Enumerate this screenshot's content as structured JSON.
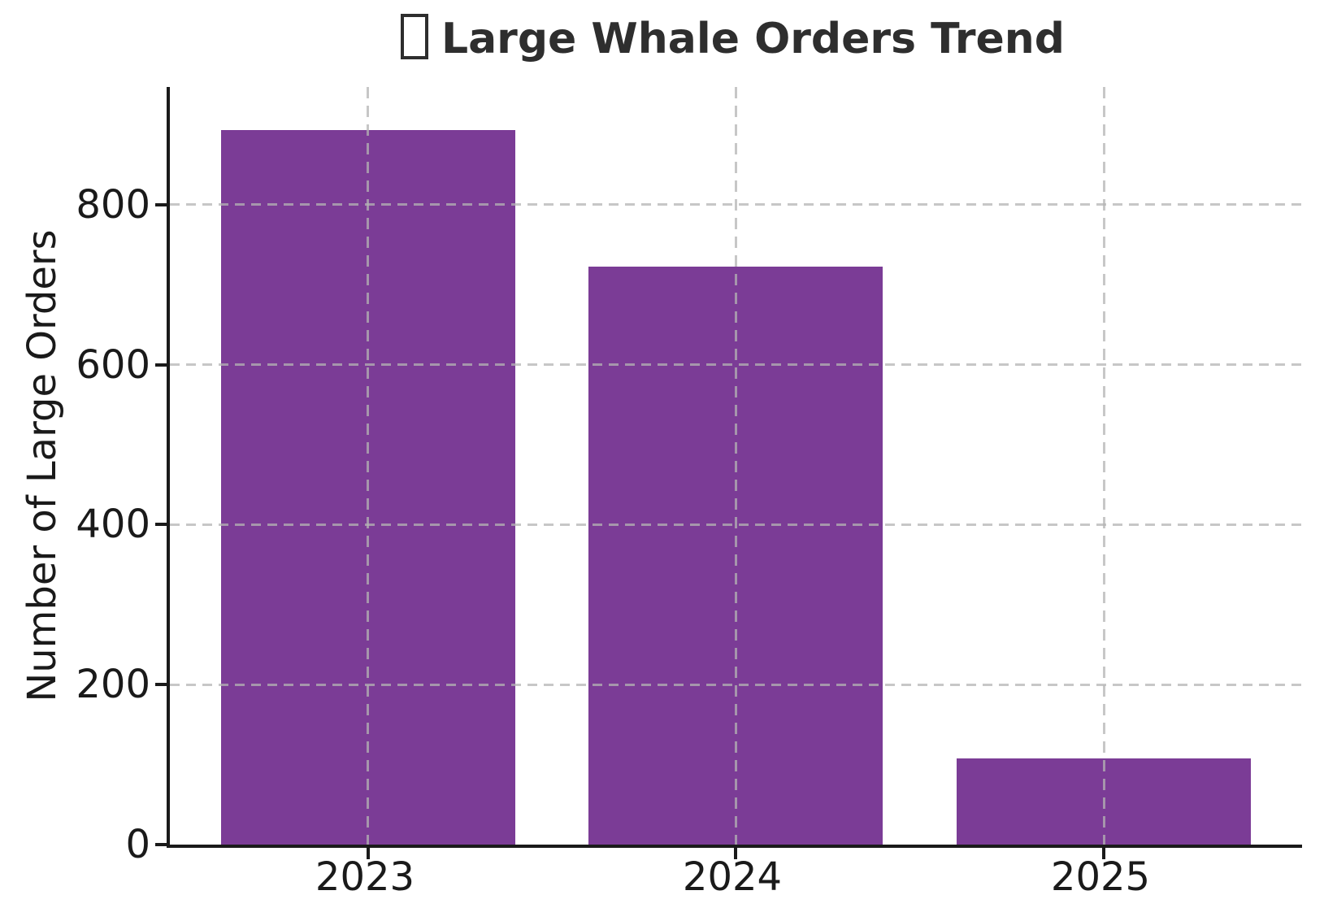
{
  "chart_data": {
    "type": "bar",
    "title": "Large Whale Orders Trend",
    "title_icon": "missing-emoji-glyph-box",
    "ylabel": "Number of Large Orders",
    "xlabel": "",
    "categories": [
      "2023",
      "2024",
      "2025"
    ],
    "values": [
      893,
      722,
      108
    ],
    "yticks": [
      0,
      200,
      400,
      600,
      800
    ],
    "ylim": [
      0,
      947
    ],
    "grid": "dashed, drawn above bars, x and y",
    "legend": "none",
    "colors": {
      "bar": "#7b3c96",
      "grid": "#c9c9c9",
      "spine": "#1a1a1a",
      "title": "#2e2e2e",
      "tick_label": "#1a1a1a",
      "background": "#ffffff"
    }
  }
}
